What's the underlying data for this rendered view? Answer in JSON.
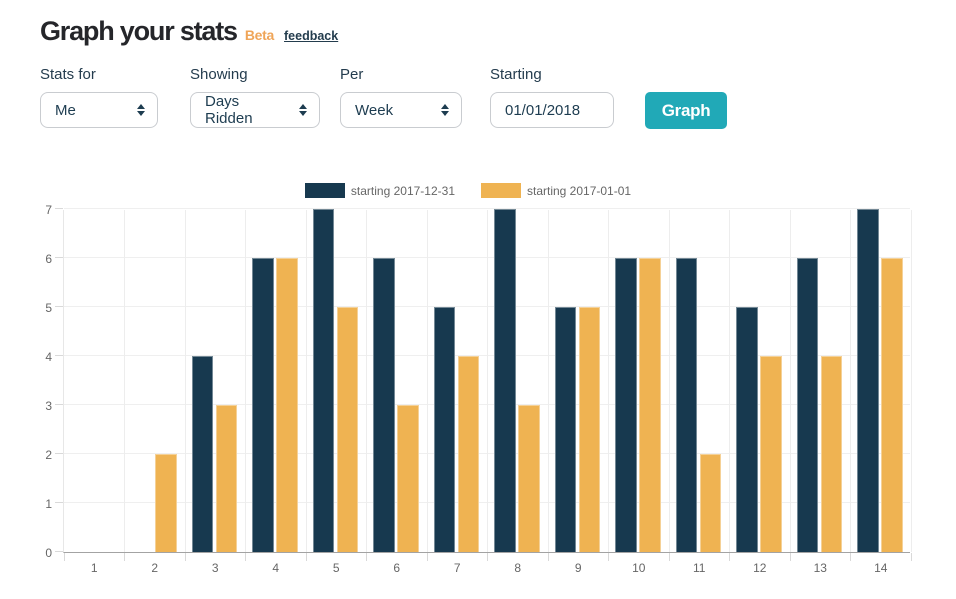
{
  "header": {
    "title": "Graph your stats",
    "beta_label": "Beta",
    "feedback_label": "feedback"
  },
  "controls": {
    "stats_for": {
      "label": "Stats for",
      "value": "Me"
    },
    "showing": {
      "label": "Showing",
      "value": "Days Ridden"
    },
    "per": {
      "label": "Per",
      "value": "Week"
    },
    "starting": {
      "label": "Starting",
      "value": "01/01/2018"
    },
    "graph_button_label": "Graph"
  },
  "colors": {
    "accent_teal": "#21a9b7",
    "beta_orange": "#efa558",
    "series_navy": "#17394f",
    "series_orange": "#efb352",
    "axis_text": "#666666",
    "gridline": "#ededed",
    "axis_line": "#a3a3a3"
  },
  "chart_data": {
    "type": "bar",
    "title": "",
    "xlabel": "",
    "ylabel": "",
    "categories": [
      "1",
      "2",
      "3",
      "4",
      "5",
      "6",
      "7",
      "8",
      "9",
      "10",
      "11",
      "12",
      "13",
      "14"
    ],
    "series": [
      {
        "name": "starting 2017-12-31",
        "color": "#17394f",
        "values": [
          0,
          0,
          4,
          6,
          7,
          6,
          5,
          7,
          5,
          6,
          6,
          5,
          6,
          7
        ]
      },
      {
        "name": "starting 2017-01-01",
        "color": "#efb352",
        "values": [
          0,
          2,
          3,
          6,
          5,
          3,
          4,
          3,
          5,
          6,
          2,
          4,
          4,
          6
        ]
      }
    ],
    "ylim": [
      0,
      7
    ],
    "yticks": [
      0,
      1,
      2,
      3,
      4,
      5,
      6,
      7
    ],
    "grid": true,
    "legend_position": "top"
  }
}
